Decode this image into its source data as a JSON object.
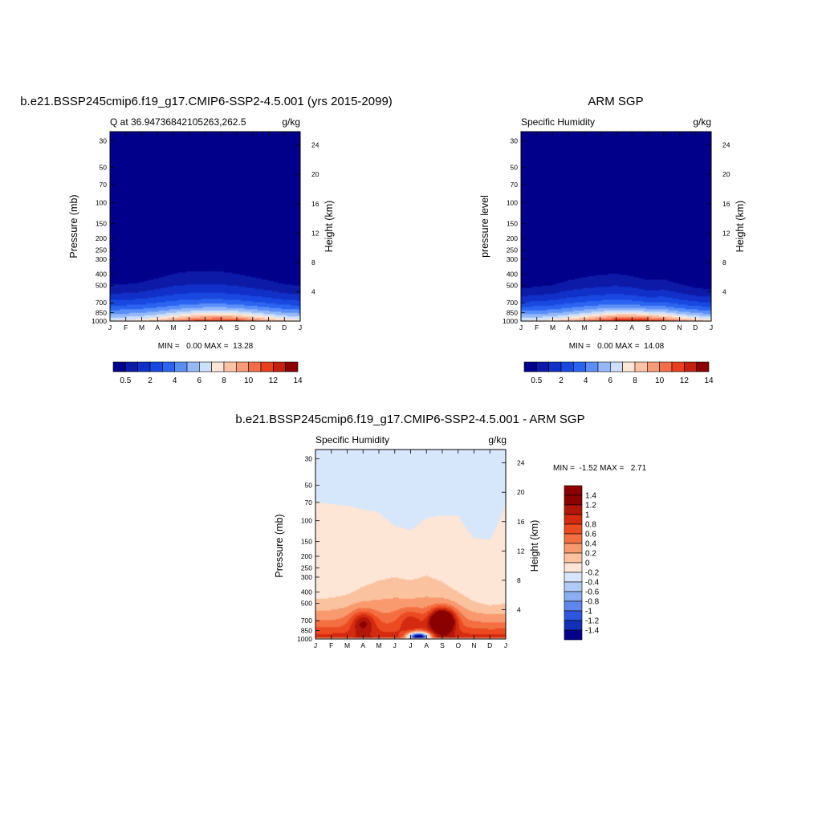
{
  "chart_data": [
    {
      "id": "model",
      "type": "heatmap",
      "title": "b.e21.BSSP245cmip6.f19_g17.CMIP6-SSP2-4.5.001 (yrs 2015-2099)",
      "subtitle_left": "Q at 36.94736842105263,262.5",
      "subtitle_right": "g/kg",
      "ylabel_left": "Pressure (mb)",
      "ylabel_right": "Height (km)",
      "x_ticklabels": [
        "J",
        "F",
        "M",
        "A",
        "M",
        "J",
        "J",
        "A",
        "S",
        "O",
        "N",
        "D",
        "J"
      ],
      "y_ticks": [
        30,
        50,
        70,
        100,
        150,
        200,
        250,
        300,
        400,
        500,
        700,
        850,
        1000
      ],
      "y_scale": "log",
      "y_range": [
        1000,
        25
      ],
      "height_ticks": [
        4,
        8,
        12,
        16,
        20,
        24
      ],
      "minmax_text": "MIN =   0.00 MAX =  13.28",
      "min": 0.0,
      "max": 13.28,
      "moist_top_mb": [
        430,
        420,
        400,
        360,
        320,
        300,
        300,
        300,
        320,
        350,
        380,
        420,
        440
      ],
      "peak_month": 6.8,
      "peak_pressure_mb": 960,
      "colorbar": {
        "levels": [
          0.5,
          1,
          2,
          3,
          4,
          5,
          6,
          7,
          8,
          9,
          10,
          11,
          12,
          13,
          14
        ],
        "labels": [
          "0.5",
          "2",
          "4",
          "6",
          "8",
          "10",
          "12",
          "14"
        ],
        "label_positions": [
          0,
          2,
          4,
          6,
          8,
          10,
          12,
          14
        ]
      }
    },
    {
      "id": "obs",
      "type": "heatmap",
      "title": "ARM SGP",
      "subtitle_left": "Specific Humidity",
      "subtitle_right": "g/kg",
      "ylabel_left": "pressure level",
      "ylabel_right": "Height (km)",
      "x_ticklabels": [
        "J",
        "F",
        "M",
        "A",
        "M",
        "J",
        "J",
        "A",
        "S",
        "O",
        "N",
        "D",
        "J"
      ],
      "y_ticks": [
        30,
        50,
        70,
        100,
        150,
        200,
        250,
        300,
        400,
        500,
        700,
        850,
        1000
      ],
      "y_scale": "log",
      "y_range": [
        1000,
        25
      ],
      "height_ticks": [
        4,
        8,
        12,
        16,
        20,
        24
      ],
      "minmax_text": "MIN =   0.00 MAX =  14.08",
      "min": 0.0,
      "max": 14.08,
      "moist_top_mb": [
        470,
        450,
        430,
        380,
        350,
        330,
        320,
        340,
        380,
        370,
        420,
        460,
        480
      ],
      "peak_month": 7.0,
      "peak_pressure_mb": 950,
      "colorbar": {
        "levels": [
          0.5,
          1,
          2,
          3,
          4,
          5,
          6,
          7,
          8,
          9,
          10,
          11,
          12,
          13,
          14
        ],
        "labels": [
          "0.5",
          "2",
          "4",
          "6",
          "8",
          "10",
          "12",
          "14"
        ],
        "label_positions": [
          0,
          2,
          4,
          6,
          8,
          10,
          12,
          14
        ]
      }
    },
    {
      "id": "diff",
      "type": "heatmap",
      "title": "b.e21.BSSP245cmip6.f19_g17.CMIP6-SSP2-4.5.001 - ARM SGP",
      "subtitle_left": "Specific Humidity",
      "subtitle_right": "g/kg",
      "ylabel_left": "Pressure (mb)",
      "ylabel_right": "Height (km)",
      "x_ticklabels": [
        "J",
        "F",
        "M",
        "A",
        "M",
        "J",
        "J",
        "A",
        "S",
        "O",
        "N",
        "D",
        "J"
      ],
      "y_ticks": [
        30,
        50,
        70,
        100,
        150,
        200,
        250,
        300,
        400,
        500,
        700,
        850,
        1000
      ],
      "y_scale": "log",
      "y_range": [
        1000,
        25
      ],
      "height_ticks": [
        4,
        8,
        12,
        16,
        20,
        24
      ],
      "minmax_text": "MIN =  -1.52 MAX =   2.71",
      "min": -1.52,
      "max": 2.71,
      "positive_top_mb": [
        70,
        72,
        75,
        80,
        85,
        110,
        120,
        95,
        90,
        90,
        140,
        145,
        70
      ],
      "moist_top_mb": [
        460,
        450,
        420,
        360,
        320,
        300,
        320,
        290,
        330,
        400,
        480,
        520,
        500
      ],
      "maxima": [
        {
          "month": 3.0,
          "pressure_mb": 720,
          "value": 1.5
        },
        {
          "month": 6.0,
          "pressure_mb": 690,
          "value": 1.2
        },
        {
          "month": 8.0,
          "pressure_mb": 700,
          "value": 2.71
        }
      ],
      "minimum": {
        "month": 6.5,
        "pressure_mb": 960,
        "value": -1.52
      },
      "colorbar": {
        "levels": [
          1.4,
          1.2,
          1,
          0.8,
          0.6,
          0.4,
          0.2,
          0,
          -0.2,
          -0.4,
          -0.6,
          -0.8,
          -1,
          -1.2,
          -1.4
        ],
        "labels": [
          "1.4",
          "1.2",
          "1",
          "0.8",
          "0.6",
          "0.4",
          "0.2",
          "0",
          "-0.2",
          "-0.4",
          "-0.6",
          "-0.8",
          "-1",
          "-1.2",
          "-1.4"
        ]
      }
    }
  ],
  "colors": {
    "abs_palette": [
      "#00008b",
      "#0d1aa8",
      "#1030c8",
      "#1848e0",
      "#2a64f0",
      "#5a8ef8",
      "#94b8f8",
      "#cde0fa",
      "#fde6d6",
      "#fbc2a6",
      "#f79a78",
      "#f36d4a",
      "#e8401f",
      "#c51f0e",
      "#8b0000"
    ],
    "diff_palette": [
      "#8b0000",
      "#b0170a",
      "#d42a10",
      "#ec4a20",
      "#f36f42",
      "#f89a6e",
      "#fbc2a0",
      "#fde6d6",
      "#d7e7fb",
      "#b0cbf6",
      "#8aadf1",
      "#5f86ec",
      "#2d57e0",
      "#1330b8",
      "#00008b"
    ],
    "diff_below_zero": "#d7e7fb"
  }
}
